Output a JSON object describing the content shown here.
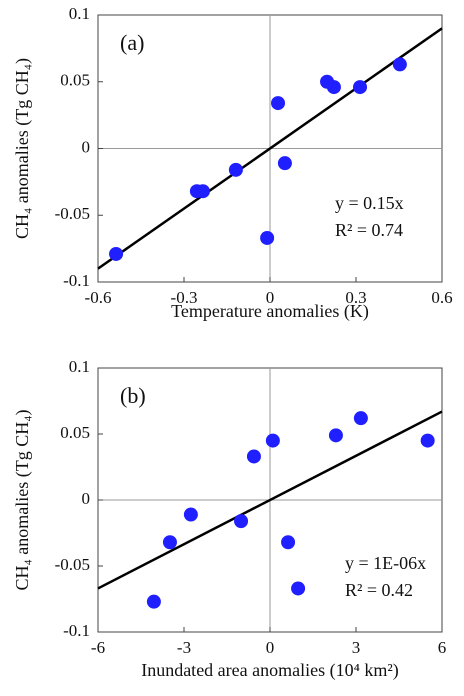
{
  "chart_data": [
    {
      "type": "scatter",
      "panel_label": "(a)",
      "x_label": "Temperature anomalies (K)",
      "y_label": "CH₄ anomalies (Tg CH₄)",
      "annotations": [
        "y = 0.15x",
        "R² = 0.74"
      ],
      "xlim": [
        -0.6,
        0.6
      ],
      "ylim": [
        -0.1,
        0.1
      ],
      "xticks": [
        -0.6,
        -0.3,
        0,
        0.3,
        0.6
      ],
      "yticks": [
        -0.1,
        -0.05,
        0,
        0.05,
        0.1
      ],
      "color": "#1f1fff",
      "x": [
        -0.537,
        -0.255,
        -0.234,
        -0.119,
        -0.01,
        0.028,
        0.052,
        0.199,
        0.223,
        0.314,
        0.453
      ],
      "values": [
        -0.079,
        -0.032,
        -0.032,
        -0.016,
        -0.067,
        0.034,
        -0.011,
        0.05,
        0.046,
        0.046,
        0.063
      ],
      "fit": {
        "x": [
          -0.6,
          0.6
        ],
        "y": [
          -0.09,
          0.09
        ]
      }
    },
    {
      "type": "scatter",
      "panel_label": "(b)",
      "x_label": "Inundated area anomalies (10⁴ km²)",
      "y_label": "CH₄ anomalies (Tg CH₄)",
      "annotations": [
        "y = 1E-06x",
        "R² = 0.42"
      ],
      "xlim": [
        -6,
        6
      ],
      "ylim": [
        -0.1,
        0.1
      ],
      "xticks": [
        -6,
        -3,
        0,
        3,
        6
      ],
      "yticks": [
        -0.1,
        -0.05,
        0,
        0.05,
        0.1
      ],
      "color": "#1f1fff",
      "x": [
        -4.05,
        -3.49,
        -2.76,
        -1.01,
        -0.56,
        0.1,
        0.63,
        0.98,
        2.3,
        3.17,
        5.5
      ],
      "values": [
        -0.077,
        -0.032,
        -0.011,
        -0.016,
        0.033,
        0.045,
        -0.032,
        -0.067,
        0.049,
        0.062,
        0.045
      ],
      "fit": {
        "x": [
          -6,
          6
        ],
        "y": [
          -0.067,
          0.067
        ]
      }
    }
  ]
}
